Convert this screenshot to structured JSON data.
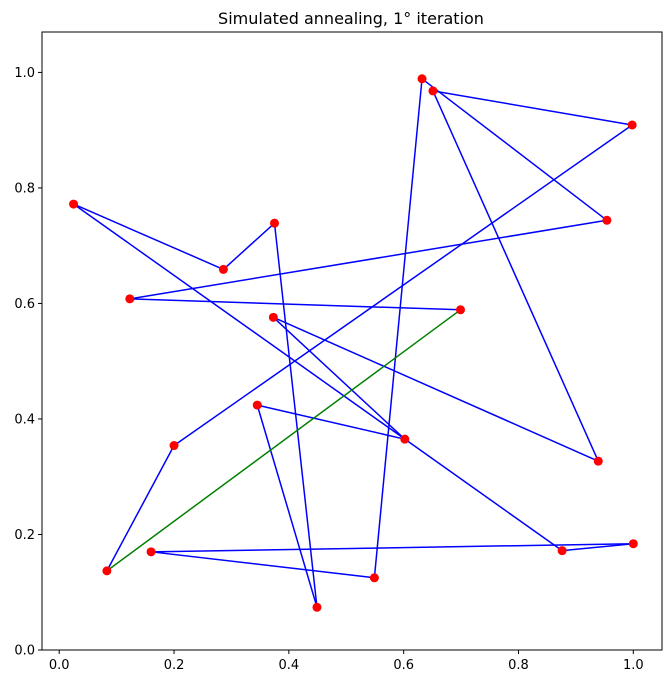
{
  "chart_data": {
    "type": "line",
    "title": "Simulated annealing, 1° iteration",
    "xlabel": "",
    "ylabel": "",
    "xlim": [
      -0.03,
      1.05
    ],
    "ylim": [
      0.0,
      1.07
    ],
    "xticks": [
      0.0,
      0.2,
      0.4,
      0.6,
      0.8,
      1.0
    ],
    "yticks": [
      0.0,
      0.2,
      0.4,
      0.6,
      0.8,
      1.0
    ],
    "xtick_labels": [
      "0.0",
      "0.2",
      "0.4",
      "0.6",
      "0.8",
      "1.0"
    ],
    "ytick_labels": [
      "0.0",
      "0.2",
      "0.4",
      "0.6",
      "0.8",
      "1.0"
    ],
    "grid": false,
    "points": [
      {
        "x": 0.083,
        "y": 0.137
      },
      {
        "x": 0.699,
        "y": 0.589
      },
      {
        "x": 0.123,
        "y": 0.608
      },
      {
        "x": 0.954,
        "y": 0.744
      },
      {
        "x": 0.632,
        "y": 0.989
      },
      {
        "x": 0.549,
        "y": 0.125
      },
      {
        "x": 0.16,
        "y": 0.17
      },
      {
        "x": 1.0,
        "y": 0.184
      },
      {
        "x": 0.876,
        "y": 0.172
      },
      {
        "x": 0.025,
        "y": 0.772
      },
      {
        "x": 0.286,
        "y": 0.659
      },
      {
        "x": 0.375,
        "y": 0.739
      },
      {
        "x": 0.449,
        "y": 0.074
      },
      {
        "x": 0.345,
        "y": 0.424
      },
      {
        "x": 0.602,
        "y": 0.365
      },
      {
        "x": 0.373,
        "y": 0.576
      },
      {
        "x": 0.939,
        "y": 0.327
      },
      {
        "x": 0.651,
        "y": 0.968
      },
      {
        "x": 0.998,
        "y": 0.909
      },
      {
        "x": 0.2,
        "y": 0.354
      }
    ],
    "path_order": [
      1,
      2,
      3,
      4,
      5,
      6,
      7,
      8,
      9,
      10,
      11,
      12,
      13,
      14,
      15,
      16,
      17,
      18,
      19,
      0
    ],
    "closing_edge": [
      1,
      0
    ],
    "colors": {
      "path": "#0000ff",
      "closing_edge": "#008000",
      "points": "#ff0000",
      "axes": "#000000"
    }
  }
}
